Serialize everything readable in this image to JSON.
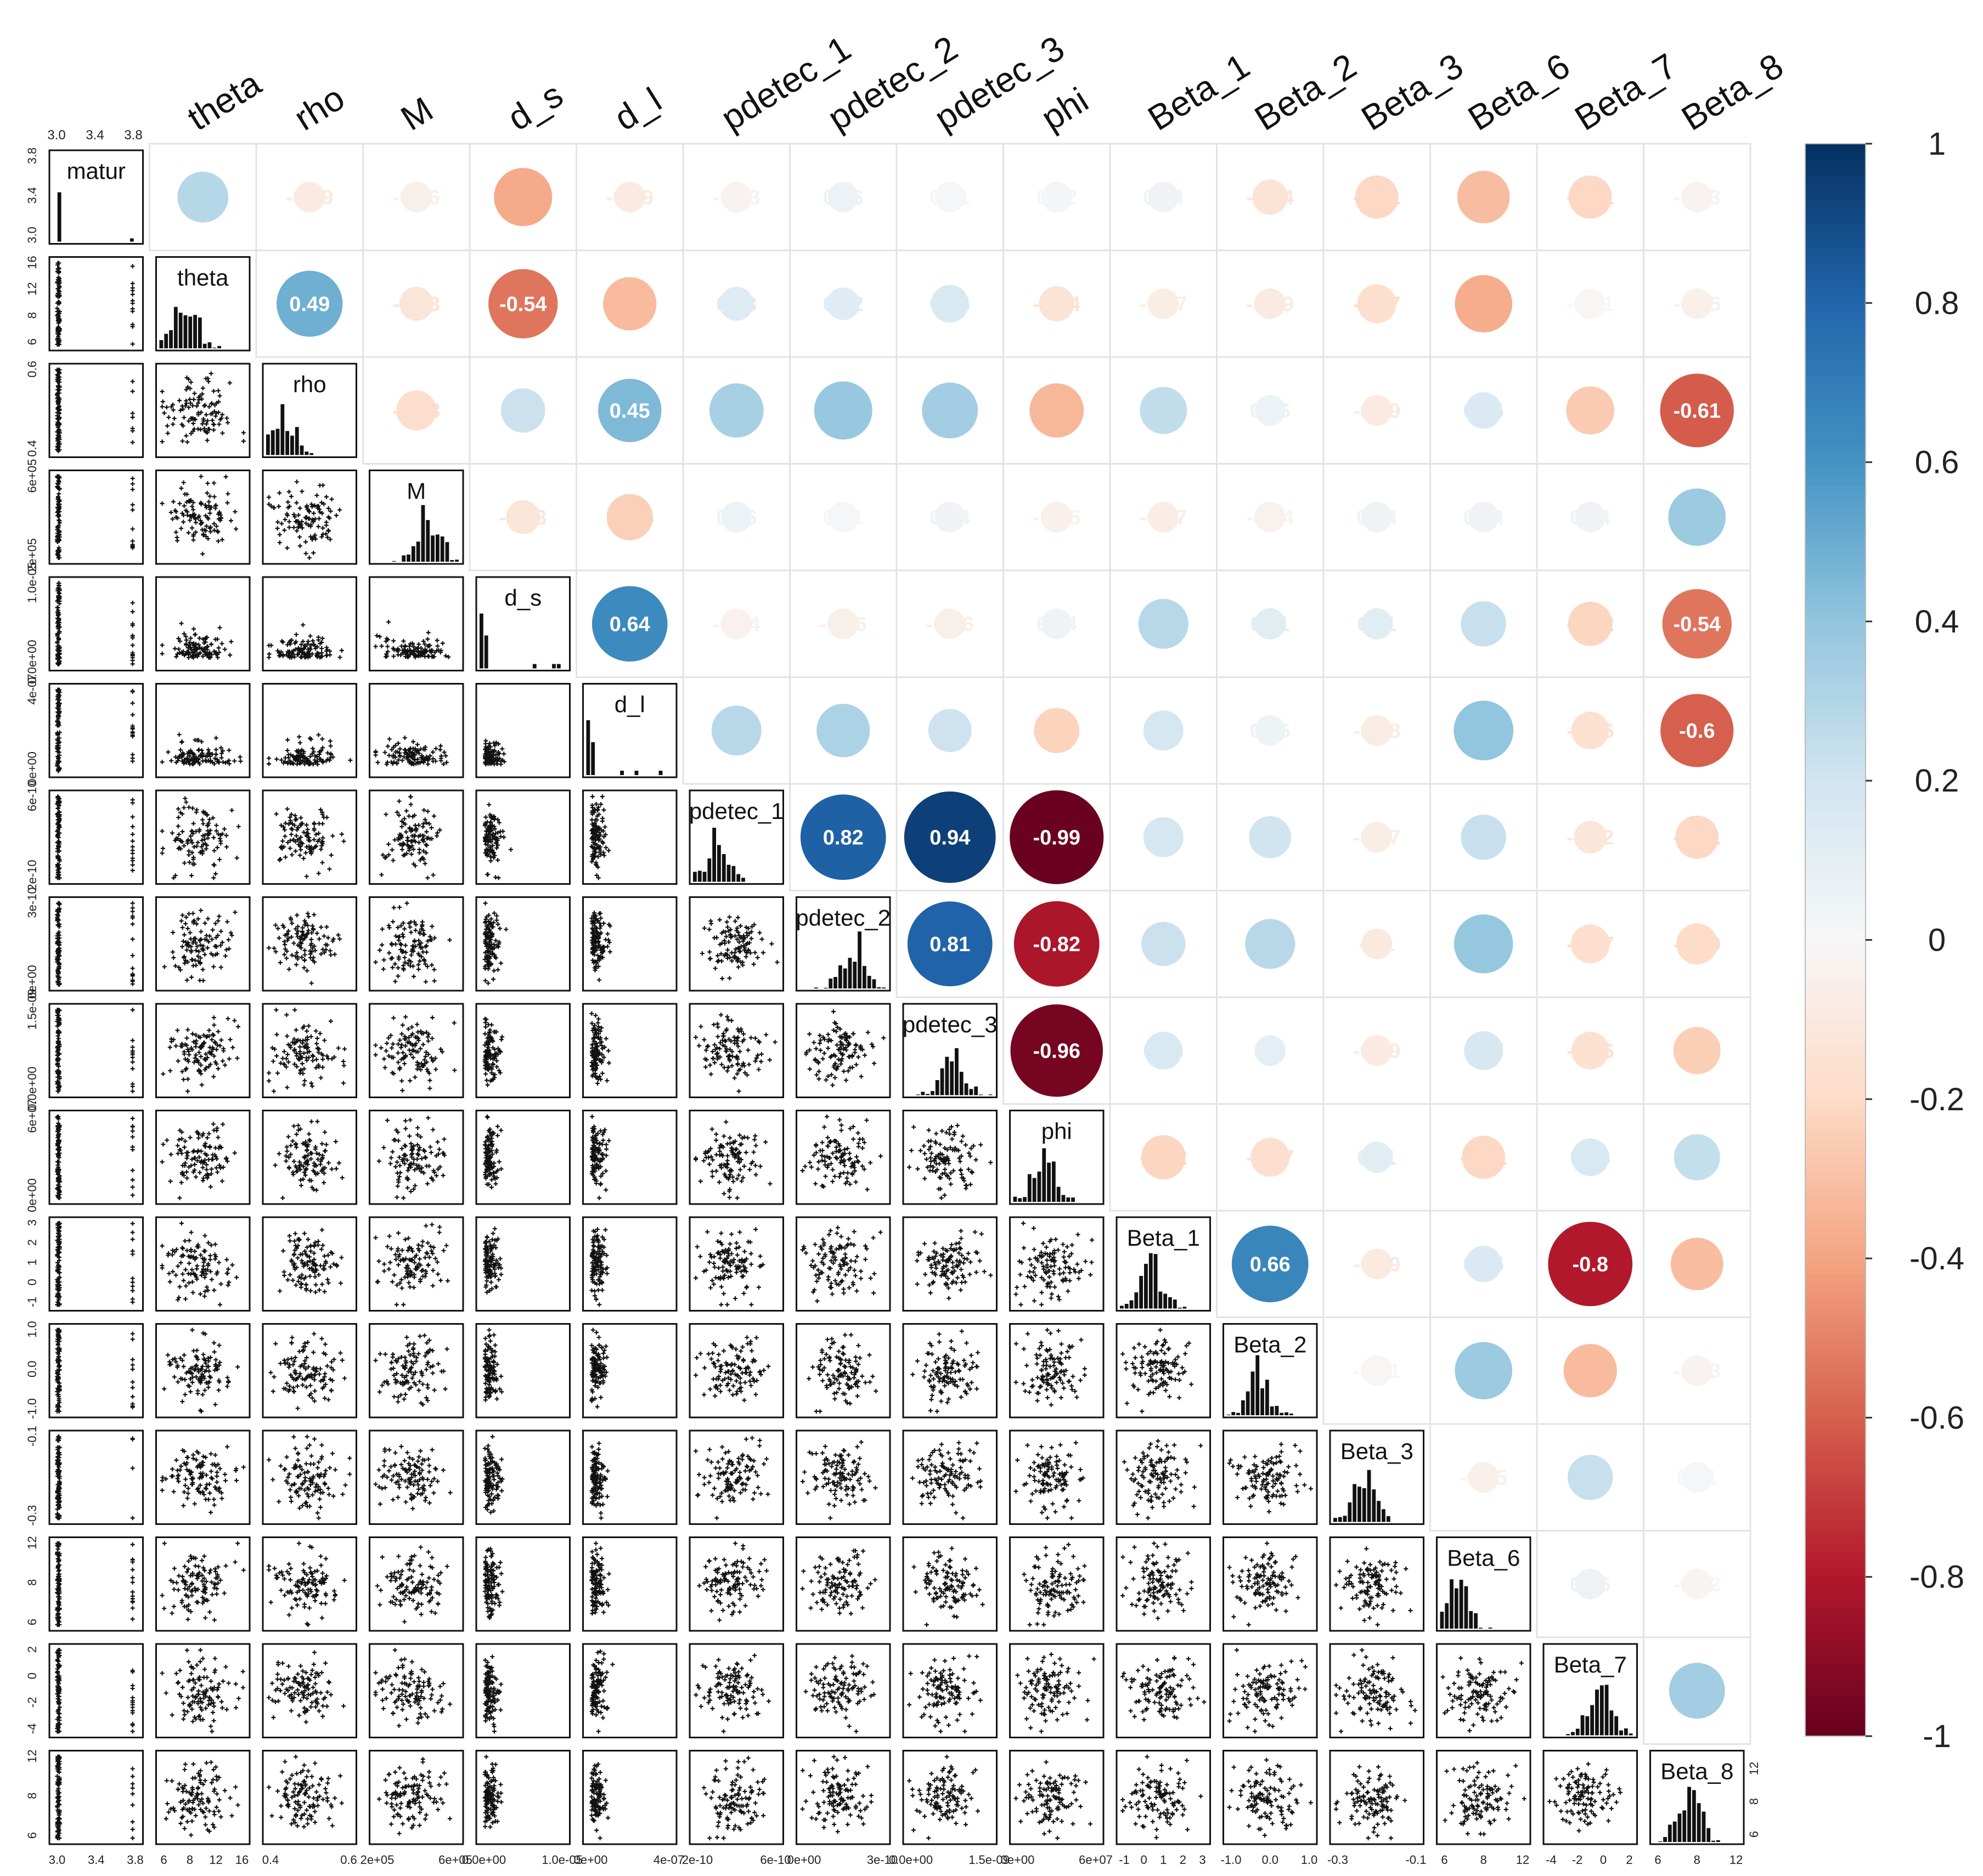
{
  "chart_data": {
    "type": "scatterplot-matrix-correlogram",
    "variables": [
      "matur",
      "theta",
      "rho",
      "M",
      "d_s",
      "d_l",
      "pdetec_1",
      "pdetec_2",
      "pdetec_3",
      "phi",
      "Beta_1",
      "Beta_2",
      "Beta_3",
      "Beta_6",
      "Beta_7",
      "Beta_8"
    ],
    "column_headers": [
      "theta",
      "rho",
      "M",
      "d_s",
      "d_l",
      "pdetec_1",
      "pdetec_2",
      "pdetec_3",
      "phi",
      "Beta_1",
      "Beta_2",
      "Beta_3",
      "Beta_6",
      "Beta_7",
      "Beta_8"
    ],
    "correlations": [
      [
        "0.29",
        "-0.09",
        "-0.06",
        "-0.38",
        "-0.09",
        "-0.03",
        "0.06",
        "0.01",
        "0.02",
        "0.04",
        "-0.14",
        "-0.21",
        "-0.31",
        "-0.21",
        "-0.03"
      ],
      [
        "0.49",
        "-0.13",
        "-0.54",
        "-0.32",
        "0.13",
        "0.12",
        "0.16",
        "-0.14",
        "-0.07",
        "-0.09",
        "-0.17",
        "-0.37",
        "-0.01",
        "-0.05"
      ],
      [
        "-0.18",
        "0.22",
        "0.45",
        "0.33",
        "0.38",
        "0.35",
        "-0.33",
        "0.25",
        "0.06",
        "-0.09",
        "0.15",
        "-0.26",
        "-0.61"
      ],
      [
        "-0.13",
        "-0.24",
        "0.06",
        "0.01",
        "0.04",
        "-0.05",
        "-0.07",
        "-0.04",
        "0.04",
        "0.04",
        "0.04",
        "0.37"
      ],
      [
        "0.64",
        "-0.04",
        "-0.06",
        "-0.06",
        "0.04",
        "0.28",
        "0.11",
        "0.11",
        "0.23",
        "-0.22",
        "-0.54"
      ],
      [
        "0.28",
        "0.32",
        "0.21",
        "-0.23",
        "0.18",
        "0.05",
        "-0.08",
        "0.4",
        "-0.16",
        "-0.6"
      ],
      [
        "0.82",
        "0.94",
        "-0.99",
        "0.18",
        "0.2",
        "-0.07",
        "0.23",
        "-0.12",
        "-0.21"
      ],
      [
        "0.81",
        "-0.82",
        "0.22",
        "0.28",
        "-0.1",
        "0.39",
        "-0.17",
        "-0.19"
      ],
      [
        "-0.96",
        "0.16",
        "0.1",
        "-0.09",
        "0.17",
        "-0.16",
        "-0.25"
      ],
      [
        "-0.22",
        "-0.17",
        "0.11",
        "-0.21",
        "0.16",
        "0.24"
      ],
      [
        "0.66",
        "-0.09",
        "0.15",
        "-0.8",
        "-0.31"
      ],
      [
        "-0.01",
        "0.37",
        "-0.32",
        "-0.03"
      ],
      [
        "-0.05",
        "0.23",
        "0.01"
      ],
      [
        "0.06",
        "-0.02"
      ],
      [
        "0.35"
      ]
    ],
    "top_axis_ticks": [
      "3.0",
      "3.4",
      "3.8"
    ],
    "left_axis_ticks": [
      [
        "3.0",
        "3.4",
        "3.8"
      ],
      [
        "6",
        "8",
        "12",
        "16"
      ],
      [
        "0.4",
        "0.6"
      ],
      [
        "2e+05",
        "6e+05"
      ],
      [
        "0.0e+00",
        "1.0e-05"
      ],
      [
        "0e+00",
        "4e-07"
      ],
      [
        "2e-10",
        "6e-10"
      ],
      [
        "0e+00",
        "3e-10"
      ],
      [
        "0.0e+00",
        "1.5e-09"
      ],
      [
        "0e+00",
        "6e+07"
      ],
      [
        "-1",
        "0",
        "1",
        "2",
        "3"
      ],
      [
        "-1.0",
        "0.0",
        "1.0"
      ],
      [
        "-0.3",
        "-0.1"
      ],
      [
        "6",
        "8",
        "12"
      ],
      [
        "-4",
        "-2",
        "0",
        "2"
      ],
      [
        "6",
        "8",
        "12"
      ]
    ],
    "bottom_axis_ticks": [
      [
        "3.0",
        "3.4",
        "3.8"
      ],
      [
        "6",
        "8",
        "12",
        "16"
      ],
      [
        "0.4",
        "0.6"
      ],
      [
        "2e+05",
        "6e+05"
      ],
      [
        "0.0e+00",
        "1.0e-05"
      ],
      [
        "0e+00",
        "4e-07"
      ],
      [
        "2e-10",
        "6e-10"
      ],
      [
        "0e+00",
        "3e-10"
      ],
      [
        "0.0e+00",
        "1.5e-09"
      ],
      [
        "0e+00",
        "6e+07"
      ],
      [
        "-1",
        "0",
        "1",
        "2",
        "3"
      ],
      [
        "-1.0",
        "0.0",
        "1.0"
      ],
      [
        "-0.3",
        "-0.1"
      ],
      [
        "6",
        "8",
        "12"
      ],
      [
        "-4",
        "-2",
        "0",
        "2"
      ],
      [
        "6",
        "8",
        "12"
      ]
    ],
    "right_axis_ticks": [
      "6",
      "8",
      "12"
    ],
    "colorbar": {
      "range": [
        -1,
        1
      ],
      "tick_labels": [
        "1",
        "0.8",
        "0.6",
        "0.4",
        "0.2",
        "0",
        "-0.2",
        "-0.4",
        "-0.6",
        "-0.8",
        "-1"
      ],
      "tick_values": [
        1,
        0.8,
        0.6,
        0.4,
        0.2,
        0,
        -0.2,
        -0.4,
        -0.6,
        -0.8,
        -1
      ],
      "colors": {
        "pos_strong": "#053061",
        "pos_mid": "#2166ac",
        "pos_light": "#92c5de",
        "neutral": "#f7f7f7",
        "neg_light": "#f4a582",
        "neg_mid": "#d6604d",
        "neg_strong": "#67001f"
      }
    }
  }
}
